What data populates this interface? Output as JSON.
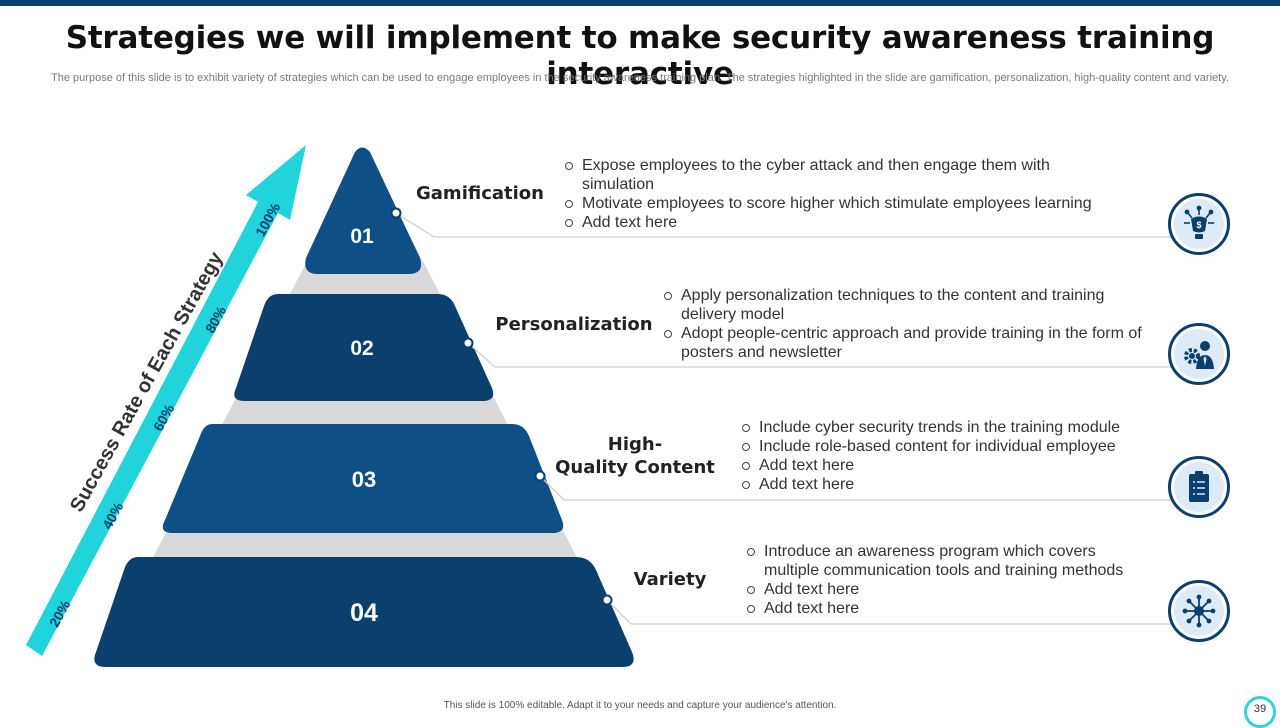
{
  "title": "Strategies we will implement to make security awareness training interactive",
  "subtitle": "The purpose of this slide is to exhibit variety  of strategies which can be used to engage employees in the security awareness training plan. The strategies highlighted in the slide are gamification, personalization, high-quality content and variety.",
  "arrow": {
    "axis_label": "Success Rate of Each Strategy",
    "ticks": [
      "20%",
      "40%",
      "60%",
      "80%",
      "100%"
    ]
  },
  "tiers": [
    {
      "number": "01",
      "label": "Gamification",
      "bullets": [
        "Expose employees to the cyber attack and then engage them with simulation",
        "Motivate employees to score higher which stimulate employees learning",
        "Add text here"
      ],
      "icon": "ai-robot-money-icon"
    },
    {
      "number": "02",
      "label": "Personalization",
      "bullets": [
        "Apply personalization techniques to the content and training delivery model",
        "Adopt people-centric approach and provide training in the form of posters and newsletter"
      ],
      "icon": "gear-person-icon"
    },
    {
      "number": "03",
      "label_line1": "High-",
      "label_line2": "Quality Content",
      "bullets": [
        "Include  cyber security trends in the training module",
        "Include  role-based content for individual employee",
        "Add text here",
        "Add text here"
      ],
      "icon": "checklist-clipboard-icon"
    },
    {
      "number": "04",
      "label": "Variety",
      "bullets": [
        "Introduce  an awareness program which covers multiple communication tools and training methods",
        "Add text here",
        "Add text here"
      ],
      "icon": "network-hub-icon"
    }
  ],
  "colors": {
    "tier_dark": "#0b3f6d",
    "tier_blue": "#0e4f85",
    "arrow": "#21d4dc",
    "pyramid_bg": "#d9d9d9",
    "connector": "#cfcfcf"
  },
  "footer": "This slide is 100% editable.  Adapt it to your needs and capture your audience's attention.",
  "page_number": "39"
}
